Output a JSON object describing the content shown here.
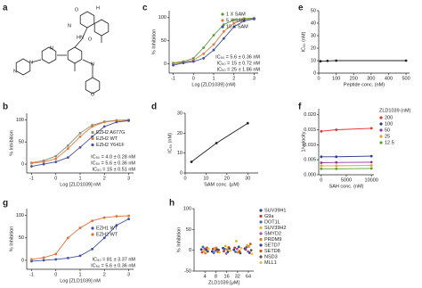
{
  "panel_labels": [
    "a",
    "b",
    "c",
    "d",
    "e",
    "f",
    "g",
    "h"
  ],
  "structure": {
    "atoms": [
      "N",
      "N",
      "N",
      "O",
      "HN",
      "O",
      "N",
      "H",
      "O",
      "N"
    ]
  },
  "chart_data": [
    {
      "type": "line",
      "xlabel": "Log [ZLD1039] (nM)",
      "ylabel": "% Inhibition",
      "x": [
        -1,
        -0.5,
        0,
        0.5,
        1,
        1.5,
        2,
        2.5,
        3
      ],
      "xlim": [
        -1.2,
        3.2
      ],
      "xticks": [
        -1,
        0,
        1,
        2,
        3
      ],
      "ylim": [
        -20,
        115
      ],
      "yticks": [
        0,
        50,
        100
      ],
      "legend": "upper right",
      "series": [
        {
          "name": "1 X SAM",
          "color": "#5b9a3c",
          "values": [
            2,
            5,
            12,
            35,
            62,
            85,
            95,
            98,
            99
          ]
        },
        {
          "name": "5 X SAM",
          "color": "#e07b39",
          "values": [
            0,
            3,
            8,
            22,
            42,
            70,
            88,
            96,
            98
          ]
        },
        {
          "name": "10 X SAM",
          "color": "#3d4fa3",
          "values": [
            -3,
            2,
            5,
            12,
            30,
            55,
            80,
            93,
            97
          ]
        }
      ],
      "annotations": [
        {
          "text": "IC₅₀ = 5.6 ± 0.36 nM",
          "color": "#5b9a3c"
        },
        {
          "text": "IC₅₀ = 15 ± 0.72 nM",
          "color": "#e07b39"
        },
        {
          "text": "IC₅₀ = 25 ± 1.86 nM",
          "color": "#3d4fa3"
        }
      ]
    },
    {
      "type": "line",
      "xlabel": "Peptide conc. (nM)",
      "ylabel": "IC₅₀ (nM)",
      "x": [
        10,
        50,
        100,
        500
      ],
      "xlim": [
        0,
        520
      ],
      "xticks": [
        0,
        100,
        200,
        300,
        400,
        500
      ],
      "ylim": [
        0,
        50
      ],
      "yticks": [
        0,
        10,
        20,
        30,
        40,
        50
      ],
      "series": [
        {
          "color": "#222222",
          "values": [
            9.5,
            9.8,
            10,
            10
          ]
        }
      ]
    },
    {
      "type": "line",
      "xlabel": "Log [ZLD1039] nM",
      "ylabel": "% Inhibition",
      "x": [
        -1,
        -0.5,
        0,
        0.5,
        1,
        1.5,
        2,
        2.5,
        3
      ],
      "xlim": [
        -1.2,
        3.2
      ],
      "xticks": [
        -1,
        0,
        1,
        2,
        3
      ],
      "ylim": [
        -20,
        115
      ],
      "yticks": [
        0,
        50,
        100
      ],
      "legend": "right",
      "series": [
        {
          "name": "EZH2 A677G",
          "color": "#8a8f7a",
          "values": [
            3,
            8,
            18,
            42,
            70,
            88,
            96,
            99,
            100
          ]
        },
        {
          "name": "EZH2 WT",
          "color": "#e07b39",
          "values": [
            2,
            5,
            12,
            35,
            62,
            85,
            95,
            98,
            99
          ]
        },
        {
          "name": "EZH2 Y641F",
          "color": "#4b4fa0",
          "values": [
            -5,
            0,
            5,
            15,
            38,
            62,
            85,
            95,
            98
          ]
        }
      ],
      "annotations": [
        {
          "text": "IC₅₀ = 4.0 ± 0.28 nM",
          "color": "#8a8f7a"
        },
        {
          "text": "IC₅₀ = 5.6 ± 0.36 nM",
          "color": "#e07b39"
        },
        {
          "text": "IC₅₀ = 15 ± 0.51 nM",
          "color": "#4b4fa0"
        }
      ]
    },
    {
      "type": "line",
      "xlabel": "SAM conc. (μM)",
      "ylabel": "IC₅₀ (nM)",
      "x": [
        3,
        15,
        30
      ],
      "xlim": [
        0,
        35
      ],
      "xticks": [
        0,
        10,
        20,
        30
      ],
      "ylim": [
        0,
        30
      ],
      "yticks": [
        0,
        10,
        20,
        30
      ],
      "series": [
        {
          "color": "#222222",
          "values": [
            5.6,
            15,
            25
          ]
        }
      ]
    },
    {
      "type": "line",
      "xlabel": "SAH conc. (nM)",
      "ylabel": "1/velocity",
      "x": [
        0,
        3000,
        10000
      ],
      "xlim": [
        -500,
        10500
      ],
      "xticks": [
        0,
        5000,
        10000
      ],
      "ylim": [
        0,
        0.022
      ],
      "yticks": [
        {
          "value": 0,
          "label": "0.000"
        },
        0.005,
        {
          "value": 0.01,
          "label": "0.010"
        },
        0.015,
        {
          "value": 0.02,
          "label": "0.020"
        }
      ],
      "legend": "outside right",
      "legend_title": "ZLD1039 (nM)",
      "series": [
        {
          "name": "200",
          "color": "#e03030",
          "values": [
            0.0145,
            0.015,
            0.0155
          ]
        },
        {
          "name": "100",
          "color": "#2b3a8c",
          "values": [
            0.006,
            0.006,
            0.0062
          ]
        },
        {
          "name": "50",
          "color": "#8b3a9a",
          "values": [
            0.004,
            0.0041,
            0.0042
          ]
        },
        {
          "name": "25",
          "color": "#e8a020",
          "values": [
            0.003,
            0.003,
            0.0031
          ]
        },
        {
          "name": "12.5",
          "color": "#5aa02c",
          "values": [
            0.002,
            0.002,
            0.0021
          ]
        }
      ]
    },
    {
      "type": "line",
      "xlabel": "Log [ZLD1039] nM",
      "ylabel": "% Inhibition",
      "x": [
        -1,
        -0.5,
        0,
        0.5,
        1,
        1.5,
        2,
        2.5,
        3
      ],
      "xlim": [
        -1.2,
        3.2
      ],
      "xticks": [
        -1,
        0,
        1,
        2,
        3
      ],
      "ylim": [
        -20,
        115
      ],
      "yticks": [
        0,
        50,
        100
      ],
      "legend": "right",
      "series": [
        {
          "name": "EZH1 WT",
          "color": "#3f51a5",
          "values": [
            -2,
            0,
            2,
            5,
            10,
            25,
            50,
            78,
            92
          ]
        },
        {
          "name": "EZH2 WT",
          "color": "#e0703a",
          "values": [
            2,
            6,
            14,
            50,
            72,
            88,
            95,
            98,
            99
          ]
        }
      ],
      "annotations": [
        {
          "text": "IC₅₀ = 81 ± 3.37 nM",
          "color": "#3f51a5"
        },
        {
          "text": "IC₅₀ = 5.6 ± 0.36 nM",
          "color": "#e0703a"
        }
      ]
    },
    {
      "type": "scatter",
      "xlabel": "ZLD1039 [μM]",
      "ylabel": "% Inhibition",
      "xscale": "log",
      "x": [
        4,
        8,
        16,
        32,
        64
      ],
      "xlim": [
        2,
        90
      ],
      "xticks": [
        4,
        8,
        16,
        32,
        64
      ],
      "ylim": [
        -50,
        100
      ],
      "yticks": [
        -50,
        0,
        50,
        100
      ],
      "legend": "outside right",
      "series": [
        {
          "name": "SUV39H1",
          "color": "#2c3e8c",
          "values": [
            2,
            -3,
            5,
            1,
            4
          ]
        },
        {
          "name": "G9a",
          "color": "#c0392b",
          "values": [
            -5,
            3,
            -2,
            6,
            2
          ]
        },
        {
          "name": "DOT1L",
          "color": "#3a6fb0",
          "values": [
            8,
            -6,
            3,
            -4,
            7
          ]
        },
        {
          "name": "SUV39H2",
          "color": "#e8b020",
          "values": [
            -2,
            5,
            10,
            22,
            12
          ]
        },
        {
          "name": "SMYD2",
          "color": "#9b59b6",
          "values": [
            4,
            -1,
            -8,
            3,
            -3
          ]
        },
        {
          "name": "PRDM9",
          "color": "#e67e22",
          "values": [
            -7,
            6,
            2,
            -5,
            9
          ]
        },
        {
          "name": "SETD7",
          "color": "#3d3d8c",
          "values": [
            1,
            2,
            -4,
            8,
            -6
          ]
        },
        {
          "name": "SETD8",
          "color": "#d35400",
          "values": [
            6,
            -4,
            7,
            -2,
            15
          ]
        },
        {
          "name": "NSD3",
          "color": "#555555",
          "values": [
            -3,
            1,
            4,
            -7,
            0
          ]
        },
        {
          "name": "MLL1",
          "color": "#e8c040",
          "values": [
            3,
            -5,
            -1,
            5,
            -9
          ]
        }
      ]
    }
  ]
}
